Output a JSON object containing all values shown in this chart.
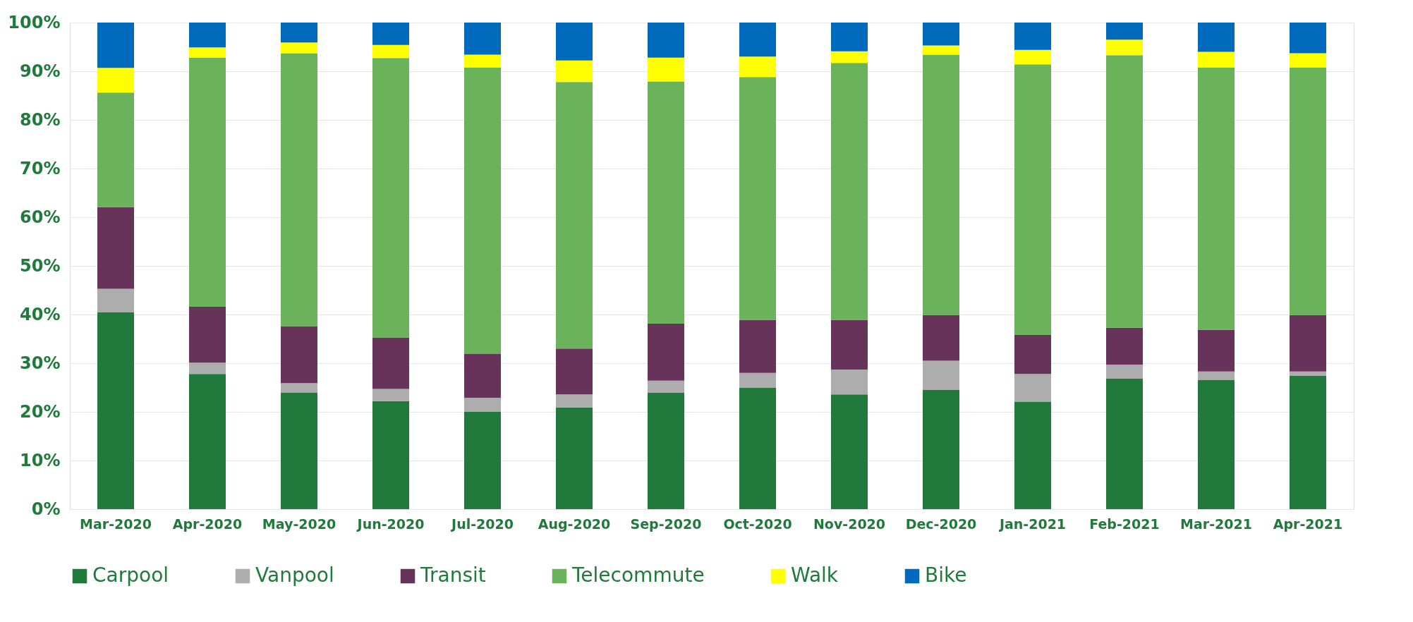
{
  "chart_data": {
    "type": "bar",
    "stacked": true,
    "categories": [
      "Mar-2020",
      "Apr-2020",
      "May-2020",
      "Jun-2020",
      "Jul-2020",
      "Aug-2020",
      "Sep-2020",
      "Oct-2020",
      "Nov-2020",
      "Dec-2020",
      "Jan-2021",
      "Feb-2021",
      "Mar-2021",
      "Apr-2021"
    ],
    "series": [
      {
        "name": "Carpool",
        "color": "#217a3c",
        "values": [
          40.5,
          27.8,
          24.0,
          22.2,
          20.0,
          20.9,
          23.9,
          25.0,
          23.6,
          24.5,
          22.1,
          26.8,
          26.6,
          27.4
        ]
      },
      {
        "name": "Vanpool",
        "color": "#adadad",
        "values": [
          4.8,
          2.3,
          1.9,
          2.5,
          2.9,
          2.7,
          2.5,
          3.0,
          5.1,
          6.0,
          5.7,
          2.9,
          1.7,
          0.9
        ]
      },
      {
        "name": "Transit",
        "color": "#68335a",
        "values": [
          16.8,
          11.5,
          11.7,
          10.6,
          9.0,
          9.4,
          11.7,
          10.9,
          10.2,
          9.4,
          8.0,
          7.6,
          8.6,
          11.6
        ]
      },
      {
        "name": "Telecommute",
        "color": "#6ab35a",
        "values": [
          23.5,
          51.2,
          56.1,
          57.4,
          58.9,
          54.8,
          49.8,
          49.9,
          52.8,
          53.5,
          55.6,
          56.0,
          53.9,
          50.9
        ]
      },
      {
        "name": "Walk",
        "color": "#ffff00",
        "values": [
          5.1,
          2.1,
          2.2,
          2.7,
          2.6,
          4.4,
          4.9,
          4.2,
          2.4,
          1.9,
          3.0,
          3.2,
          3.2,
          2.9
        ]
      },
      {
        "name": "Bike",
        "color": "#006bbd",
        "values": [
          9.3,
          5.1,
          4.1,
          4.6,
          6.6,
          7.8,
          7.2,
          7.0,
          5.9,
          4.7,
          5.6,
          3.5,
          6.0,
          6.3
        ]
      }
    ],
    "ylim": [
      0,
      100
    ],
    "yticks": [
      {
        "value": 0,
        "label": "0%"
      },
      {
        "value": 10,
        "label": "10%"
      },
      {
        "value": 20,
        "label": "20%"
      },
      {
        "value": 30,
        "label": "30%"
      },
      {
        "value": 40,
        "label": "40%"
      },
      {
        "value": 50,
        "label": "50%"
      },
      {
        "value": 60,
        "label": "60%"
      },
      {
        "value": 70,
        "label": "70%"
      },
      {
        "value": 80,
        "label": "80%"
      },
      {
        "value": 90,
        "label": "90%"
      },
      {
        "value": 100,
        "label": "100%"
      }
    ],
    "grid": "y",
    "legend": "bottom"
  }
}
